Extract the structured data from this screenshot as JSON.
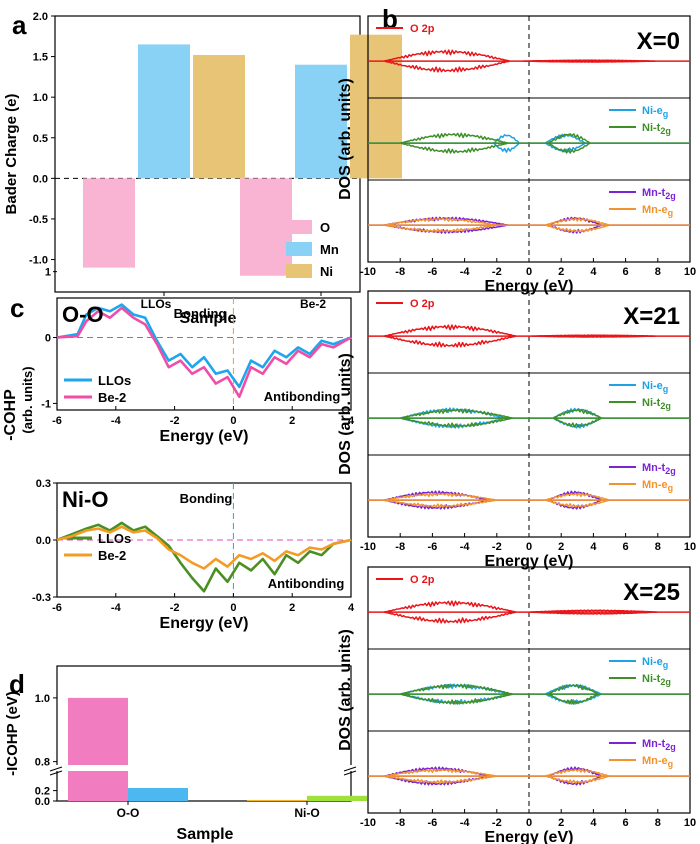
{
  "chart_data": [
    {
      "id": "a",
      "panel_label": "a",
      "type": "bar",
      "title": "",
      "xlabel": "Sample",
      "ylabel": "Bader Charge (e)",
      "categories": [
        "LLOs",
        "Be-2"
      ],
      "ylim": [
        -1.4,
        2.0
      ],
      "yticks": [
        "-1.0",
        "-0.5",
        "0.0",
        "0.5",
        "1.0",
        "1.5",
        "2.0"
      ],
      "series": [
        {
          "name": "O",
          "color": "#f9b4d4",
          "values": [
            -1.1,
            -1.2
          ]
        },
        {
          "name": "Mn",
          "color": "#89d2f5",
          "values": [
            1.65,
            1.4
          ]
        },
        {
          "name": "Ni",
          "color": "#e8c477",
          "values": [
            1.52,
            1.77
          ]
        }
      ],
      "legend": "bottom-right"
    },
    {
      "id": "b",
      "panel_label": "b",
      "type": "line",
      "xlabel": "Energy (eV)",
      "ylabel": "DOS (arb. units)",
      "xlim": [
        -10,
        10
      ],
      "xticks": [
        "-10",
        "-8",
        "-6",
        "-4",
        "-2",
        "0",
        "2",
        "4",
        "6",
        "8",
        "10"
      ],
      "fermi_level": 0,
      "stacks": [
        {
          "label": "X=0",
          "subpanels": [
            {
              "series": [
                {
                  "name": "O 2p",
                  "color": "#e8161b",
                  "occupied": [
                    -9,
                    -1.2
                  ],
                  "unoccupied": [
                    -0.5,
                    8
                  ],
                  "amp": 11,
                  "unocc_amp": 1
                }
              ]
            },
            {
              "series": [
                {
                  "name": "Ni-e",
                  "sub": "g",
                  "color": "#1fa2e5",
                  "occupied": [
                    -2.2,
                    -0.6
                  ],
                  "unoccupied": [
                    1.0,
                    3.5
                  ],
                  "amp": 9
                },
                {
                  "name": "Ni-t",
                  "sub": "2g",
                  "color": "#3f8f29",
                  "occupied": [
                    -8,
                    -1.3
                  ],
                  "unoccupied": [
                    1.2,
                    3.8
                  ],
                  "amp": 10
                }
              ]
            },
            {
              "series": [
                {
                  "name": "Mn-t",
                  "sub": "2g",
                  "color": "#7b23d6",
                  "occupied": [
                    -9,
                    -1.3
                  ],
                  "unoccupied": [
                    1.2,
                    4.5
                  ],
                  "amp": 8
                },
                {
                  "name": "Mn-e",
                  "sub": "g",
                  "color": "#f1932f",
                  "occupied": [
                    -9,
                    -2
                  ],
                  "unoccupied": [
                    1.0,
                    5.0
                  ],
                  "amp": 7
                }
              ]
            }
          ]
        },
        {
          "label": "X=21",
          "subpanels": [
            {
              "series": [
                {
                  "name": "O 2p",
                  "color": "#e8161b",
                  "occupied": [
                    -9,
                    -0.8
                  ],
                  "unoccupied": [
                    0,
                    8
                  ],
                  "amp": 11,
                  "unocc_amp": 1
                }
              ]
            },
            {
              "series": [
                {
                  "name": "Ni-e",
                  "sub": "g",
                  "color": "#1fa2e5",
                  "occupied": [
                    -8,
                    -1.5
                  ],
                  "unoccupied": [
                    1.5,
                    4.5
                  ],
                  "amp": 10
                },
                {
                  "name": "Ni-t",
                  "sub": "2g",
                  "color": "#3f8f29",
                  "occupied": [
                    -8,
                    -1.0
                  ],
                  "unoccupied": [
                    1.5,
                    4.5
                  ],
                  "amp": 9
                }
              ]
            },
            {
              "series": [
                {
                  "name": "Mn-t",
                  "sub": "2g",
                  "color": "#7b23d6",
                  "occupied": [
                    -9,
                    -2.5
                  ],
                  "unoccupied": [
                    1.2,
                    4.5
                  ],
                  "amp": 9
                },
                {
                  "name": "Mn-e",
                  "sub": "g",
                  "color": "#f1932f",
                  "occupied": [
                    -9,
                    -2
                  ],
                  "unoccupied": [
                    1.0,
                    5.0
                  ],
                  "amp": 7
                }
              ]
            }
          ]
        },
        {
          "label": "X=25",
          "subpanels": [
            {
              "series": [
                {
                  "name": "O 2p",
                  "color": "#e8161b",
                  "occupied": [
                    -9,
                    -0.8
                  ],
                  "unoccupied": [
                    0,
                    8
                  ],
                  "amp": 11,
                  "unocc_amp": 2
                }
              ]
            },
            {
              "series": [
                {
                  "name": "Ni-e",
                  "sub": "g",
                  "color": "#1fa2e5",
                  "occupied": [
                    -8,
                    -1.2
                  ],
                  "unoccupied": [
                    1.0,
                    4.5
                  ],
                  "amp": 10
                },
                {
                  "name": "Ni-t",
                  "sub": "2g",
                  "color": "#3f8f29",
                  "occupied": [
                    -8,
                    -1.0
                  ],
                  "unoccupied": [
                    1.2,
                    4.3
                  ],
                  "amp": 10
                }
              ]
            },
            {
              "series": [
                {
                  "name": "Mn-t",
                  "sub": "2g",
                  "color": "#7b23d6",
                  "occupied": [
                    -9,
                    -2.5
                  ],
                  "unoccupied": [
                    1.2,
                    4.5
                  ],
                  "amp": 9
                },
                {
                  "name": "Mn-e",
                  "sub": "g",
                  "color": "#f1932f",
                  "occupied": [
                    -9,
                    -2
                  ],
                  "unoccupied": [
                    1.0,
                    5.0
                  ],
                  "amp": 7
                }
              ]
            }
          ]
        }
      ]
    },
    {
      "id": "c",
      "panel_label": "c",
      "type": "line",
      "ylabel": "-COHP",
      "subplots": [
        {
          "title": "O-O",
          "xlabel": "Energy (eV)",
          "ylabel": "(arb. units)",
          "xlim": [
            -6,
            4
          ],
          "ylim": [
            -1.1,
            0.6
          ],
          "xticks": [
            "-6",
            "-4",
            "-2",
            "0",
            "2",
            "4"
          ],
          "yticks": [
            "-1",
            "0",
            "1"
          ],
          "annotations": [
            "Bonding",
            "Antibonding"
          ],
          "series": [
            {
              "name": "LLOs",
              "color": "#1ea6ec",
              "points": [
                [
                  -6,
                  0
                ],
                [
                  -5.3,
                  0.05
                ],
                [
                  -5,
                  0.35
                ],
                [
                  -4.6,
                  0.45
                ],
                [
                  -4.2,
                  0.4
                ],
                [
                  -3.8,
                  0.5
                ],
                [
                  -3.4,
                  0.35
                ],
                [
                  -3,
                  0.3
                ],
                [
                  -2.6,
                  -0.05
                ],
                [
                  -2.2,
                  -0.35
                ],
                [
                  -1.8,
                  -0.25
                ],
                [
                  -1.4,
                  -0.45
                ],
                [
                  -1,
                  -0.3
                ],
                [
                  -0.6,
                  -0.55
                ],
                [
                  -0.2,
                  -0.5
                ],
                [
                  0.2,
                  -0.75
                ],
                [
                  0.6,
                  -0.35
                ],
                [
                  1,
                  -0.45
                ],
                [
                  1.4,
                  -0.2
                ],
                [
                  1.8,
                  -0.3
                ],
                [
                  2.2,
                  -0.15
                ],
                [
                  2.6,
                  -0.25
                ],
                [
                  3,
                  -0.05
                ],
                [
                  3.4,
                  -0.1
                ],
                [
                  4,
                  0
                ]
              ]
            },
            {
              "name": "Be-2",
              "color": "#ef4ea8",
              "points": [
                [
                  -6,
                  0
                ],
                [
                  -5.3,
                  0.02
                ],
                [
                  -5,
                  0.25
                ],
                [
                  -4.6,
                  0.4
                ],
                [
                  -4.2,
                  0.3
                ],
                [
                  -3.8,
                  0.45
                ],
                [
                  -3.4,
                  0.3
                ],
                [
                  -3,
                  0.2
                ],
                [
                  -2.6,
                  -0.1
                ],
                [
                  -2.2,
                  -0.45
                ],
                [
                  -1.8,
                  -0.35
                ],
                [
                  -1.4,
                  -0.55
                ],
                [
                  -1,
                  -0.45
                ],
                [
                  -0.6,
                  -0.7
                ],
                [
                  -0.2,
                  -0.6
                ],
                [
                  0.2,
                  -0.9
                ],
                [
                  0.6,
                  -0.45
                ],
                [
                  1,
                  -0.55
                ],
                [
                  1.4,
                  -0.3
                ],
                [
                  1.8,
                  -0.4
                ],
                [
                  2.2,
                  -0.2
                ],
                [
                  2.6,
                  -0.3
                ],
                [
                  3,
                  -0.1
                ],
                [
                  3.4,
                  -0.15
                ],
                [
                  4,
                  0
                ]
              ]
            }
          ]
        },
        {
          "title": "Ni-O",
          "xlabel": "Energy (eV)",
          "xlim": [
            -6,
            4
          ],
          "ylim": [
            -0.3,
            0.3
          ],
          "xticks": [
            "-6",
            "-4",
            "-2",
            "0",
            "2",
            "4"
          ],
          "yticks": [
            "-0.3",
            "0.0",
            "0.3"
          ],
          "annotations": [
            "Bonding",
            "Antibonding"
          ],
          "series": [
            {
              "name": "LLOs",
              "color": "#4b8e24",
              "points": [
                [
                  -6,
                  0
                ],
                [
                  -5.5,
                  0.03
                ],
                [
                  -5,
                  0.06
                ],
                [
                  -4.6,
                  0.08
                ],
                [
                  -4.2,
                  0.05
                ],
                [
                  -3.8,
                  0.09
                ],
                [
                  -3.4,
                  0.05
                ],
                [
                  -3,
                  0.07
                ],
                [
                  -2.6,
                  0.02
                ],
                [
                  -2.2,
                  -0.03
                ],
                [
                  -1.8,
                  -0.12
                ],
                [
                  -1.4,
                  -0.2
                ],
                [
                  -1,
                  -0.27
                ],
                [
                  -0.6,
                  -0.15
                ],
                [
                  -0.2,
                  -0.22
                ],
                [
                  0.2,
                  -0.12
                ],
                [
                  0.6,
                  -0.16
                ],
                [
                  1,
                  -0.1
                ],
                [
                  1.4,
                  -0.18
                ],
                [
                  1.8,
                  -0.08
                ],
                [
                  2.2,
                  -0.12
                ],
                [
                  2.6,
                  -0.06
                ],
                [
                  3,
                  -0.08
                ],
                [
                  3.4,
                  -0.02
                ],
                [
                  4,
                  0
                ]
              ]
            },
            {
              "name": "Be-2",
              "color": "#f39c24",
              "points": [
                [
                  -6,
                  0
                ],
                [
                  -5.5,
                  0.02
                ],
                [
                  -5,
                  0.05
                ],
                [
                  -4.6,
                  0.06
                ],
                [
                  -4.2,
                  0.04
                ],
                [
                  -3.8,
                  0.07
                ],
                [
                  -3.4,
                  0.04
                ],
                [
                  -3,
                  0.05
                ],
                [
                  -2.6,
                  0.01
                ],
                [
                  -2.2,
                  -0.05
                ],
                [
                  -1.8,
                  -0.08
                ],
                [
                  -1.4,
                  -0.12
                ],
                [
                  -1,
                  -0.15
                ],
                [
                  -0.6,
                  -0.1
                ],
                [
                  -0.2,
                  -0.14
                ],
                [
                  0.2,
                  -0.08
                ],
                [
                  0.6,
                  -0.1
                ],
                [
                  1,
                  -0.07
                ],
                [
                  1.4,
                  -0.11
                ],
                [
                  1.8,
                  -0.06
                ],
                [
                  2.2,
                  -0.08
                ],
                [
                  2.6,
                  -0.04
                ],
                [
                  3,
                  -0.05
                ],
                [
                  3.4,
                  -0.02
                ],
                [
                  4,
                  0
                ]
              ]
            }
          ]
        }
      ]
    },
    {
      "id": "d",
      "panel_label": "d",
      "type": "bar",
      "xlabel": "Sample",
      "ylabel": "-ICOHP (eV)",
      "categories": [
        "O-O",
        "Ni-O"
      ],
      "axis_break": [
        0.25,
        0.78
      ],
      "yticks_upper": [
        "0.8",
        "1.0"
      ],
      "yticks_lower": [
        "0.0",
        "0.2"
      ],
      "ylim": [
        0,
        1.1
      ],
      "series": [
        {
          "name": "LLOs",
          "colors": [
            "#f27cc0",
            "#f0b62e"
          ],
          "values": [
            1.0,
            0.02
          ]
        },
        {
          "name": "Be-2",
          "colors": [
            "#4db8f0",
            "#9ee03c"
          ],
          "values": [
            0.25,
            0.1
          ]
        }
      ]
    }
  ]
}
